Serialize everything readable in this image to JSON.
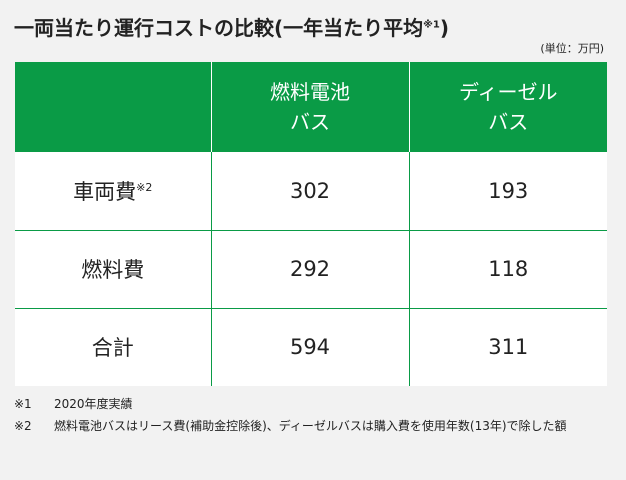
{
  "title": {
    "text": "一両当たり運行コストの比較(一年当たり平均",
    "note_ref": "※1",
    "close": ")"
  },
  "unit": "(単位：万円)",
  "table": {
    "headers": [
      {
        "line1": "",
        "line2": ""
      },
      {
        "line1": "燃料電池",
        "line2": "バス"
      },
      {
        "line1": "ディーゼル",
        "line2": "バス"
      }
    ],
    "rows": [
      {
        "label": "車両費",
        "note_ref": "※2",
        "fuel_cell_bus": "302",
        "diesel_bus": "193"
      },
      {
        "label": "燃料費",
        "note_ref": "",
        "fuel_cell_bus": "292",
        "diesel_bus": "118"
      },
      {
        "label": "合計",
        "note_ref": "",
        "fuel_cell_bus": "594",
        "diesel_bus": "311"
      }
    ]
  },
  "notes": [
    {
      "mark": "※1",
      "text": "2020年度実績"
    },
    {
      "mark": "※2",
      "text": "燃料電池バスはリース費(補助金控除後)、ディーゼルバスは購入費を使用年数(13年)で除した額"
    }
  ],
  "colors": {
    "header_green": "#0a9b46",
    "background": "#f2f2f2"
  }
}
